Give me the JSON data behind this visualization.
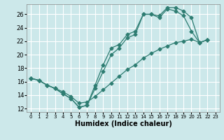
{
  "title": "",
  "xlabel": "Humidex (Indice chaleur)",
  "bg_color": "#cce8ea",
  "grid_color": "#ffffff",
  "line_color": "#2e7d72",
  "xlim": [
    -0.5,
    23.5
  ],
  "ylim": [
    11.5,
    27.5
  ],
  "xticks": [
    0,
    1,
    2,
    3,
    4,
    5,
    6,
    7,
    8,
    9,
    10,
    11,
    12,
    13,
    14,
    15,
    16,
    17,
    18,
    19,
    20,
    21,
    22,
    23
  ],
  "yticks": [
    12,
    14,
    16,
    18,
    20,
    22,
    24,
    26
  ],
  "line1_x": [
    0,
    1,
    2,
    3,
    4,
    5,
    6,
    7,
    8,
    9,
    10,
    11,
    12,
    13,
    14,
    15,
    16,
    17,
    18,
    19,
    20,
    21,
    22
  ],
  "line1_y": [
    16.5,
    16.2,
    15.5,
    15.0,
    14.2,
    13.5,
    12.2,
    12.5,
    15.5,
    18.5,
    21.0,
    21.5,
    23.0,
    23.5,
    26.0,
    26.0,
    25.8,
    27.0,
    27.0,
    26.5,
    25.5,
    21.8,
    22.2
  ],
  "line2_x": [
    0,
    1,
    2,
    3,
    4,
    5,
    6,
    7,
    8,
    9,
    10,
    11,
    12,
    13,
    14,
    15,
    16,
    17,
    18,
    19,
    20,
    21,
    22
  ],
  "line2_y": [
    16.5,
    16.2,
    15.5,
    15.0,
    14.2,
    13.5,
    12.2,
    12.5,
    15.0,
    17.5,
    20.0,
    21.0,
    22.5,
    23.0,
    26.0,
    26.0,
    25.5,
    26.8,
    26.5,
    25.8,
    23.5,
    21.8,
    22.2
  ],
  "line3_x": [
    0,
    1,
    2,
    3,
    4,
    5,
    6,
    7,
    8,
    9,
    10,
    11,
    12,
    13,
    14,
    15,
    16,
    17,
    18,
    19,
    20,
    21,
    22
  ],
  "line3_y": [
    16.5,
    16.2,
    15.5,
    15.0,
    14.5,
    13.8,
    12.8,
    13.0,
    13.8,
    14.8,
    15.8,
    16.8,
    17.8,
    18.5,
    19.5,
    20.2,
    20.8,
    21.3,
    21.8,
    22.0,
    22.3,
    21.8,
    22.2
  ]
}
